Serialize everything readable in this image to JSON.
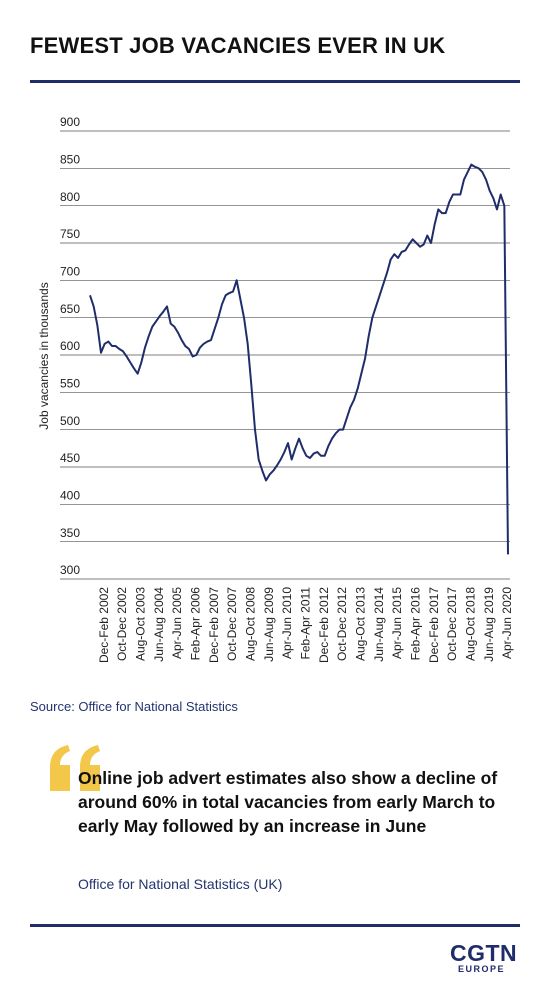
{
  "header": {
    "title": "FEWEST JOB VACANCIES EVER IN UK"
  },
  "chart_data": {
    "type": "line",
    "y_label": "Job vacancies in thousands",
    "categories": [
      null,
      null,
      null,
      null,
      "Dec-Feb 2002",
      null,
      null,
      null,
      null,
      "Oct-Dec 2002",
      null,
      null,
      null,
      null,
      "Aug-Oct 2003",
      null,
      null,
      null,
      null,
      "Jun-Aug 2004",
      null,
      null,
      null,
      null,
      "Apr-Jun 2005",
      null,
      null,
      null,
      null,
      "Feb-Apr 2006",
      null,
      null,
      null,
      null,
      "Dec-Feb 2007",
      null,
      null,
      null,
      null,
      "Oct-Dec 2007",
      null,
      null,
      null,
      null,
      "Aug-Oct 2008",
      null,
      null,
      null,
      null,
      "Jun-Aug 2009",
      null,
      null,
      null,
      null,
      "Apr-Jun 2010",
      null,
      null,
      null,
      null,
      "Feb-Apr 2011",
      null,
      null,
      null,
      null,
      "Dec-Feb 2012",
      null,
      null,
      null,
      null,
      "Oct-Dec 2012",
      null,
      null,
      null,
      null,
      "Aug-Oct 2013",
      null,
      null,
      null,
      null,
      "Jun-Aug 2014",
      null,
      null,
      null,
      null,
      "Apr-Jun 2015",
      null,
      null,
      null,
      null,
      "Feb-Apr 2016",
      null,
      null,
      null,
      null,
      "Dec-Feb 2017",
      null,
      null,
      null,
      null,
      "Oct-Dec 2017",
      null,
      null,
      null,
      null,
      "Aug-Oct 2018",
      null,
      null,
      null,
      null,
      "Jun-Aug 2019",
      null,
      null,
      null,
      null,
      "Apr-Jun 2020"
    ],
    "values": [
      680,
      665,
      640,
      603,
      615,
      618,
      612,
      612,
      608,
      605,
      598,
      590,
      582,
      575,
      590,
      610,
      625,
      638,
      645,
      652,
      658,
      665,
      642,
      638,
      630,
      620,
      612,
      608,
      598,
      600,
      610,
      615,
      618,
      620,
      635,
      650,
      668,
      680,
      683,
      685,
      700,
      675,
      650,
      615,
      560,
      500,
      460,
      445,
      432,
      440,
      445,
      452,
      460,
      470,
      482,
      460,
      475,
      488,
      475,
      465,
      462,
      468,
      470,
      465,
      465,
      478,
      488,
      495,
      500,
      500,
      515,
      530,
      540,
      555,
      575,
      595,
      625,
      650,
      665,
      680,
      695,
      710,
      728,
      735,
      730,
      738,
      740,
      748,
      755,
      750,
      745,
      748,
      760,
      750,
      775,
      795,
      790,
      790,
      805,
      815,
      815,
      815,
      835,
      845,
      855,
      852,
      850,
      845,
      835,
      820,
      810,
      795,
      815,
      800,
      333
    ],
    "color": "#1f2d6b",
    "ylim": [
      300,
      900
    ],
    "yticks": [
      300,
      350,
      400,
      450,
      500,
      550,
      600,
      650,
      700,
      750,
      800,
      850,
      900
    ],
    "grid": true
  },
  "source": "Source: Office for National Statistics",
  "quote": {
    "text": "Online job advert estimates also show a decline of around 60% in total vacancies from early March to early May followed by an increase in June",
    "attribution": "Office for National Statistics (UK)"
  },
  "logo": {
    "name": "CGTN",
    "region": "EUROPE"
  }
}
